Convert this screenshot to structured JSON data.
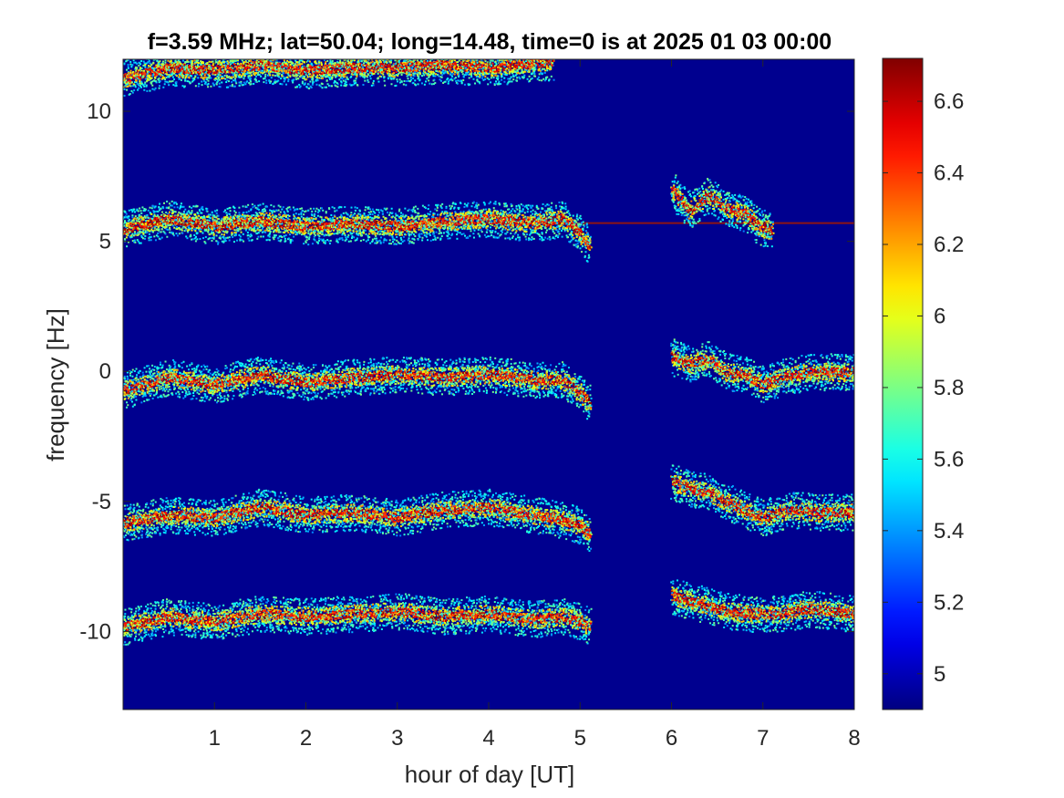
{
  "chart_data": {
    "type": "heatmap",
    "title": "f=3.59 MHz;  lat=50.04; long=14.48, time=0 is at 2025 01 03 00:00",
    "xlabel": "hour of day [UT]",
    "ylabel": "frequency [Hz]",
    "xlim": [
      0,
      8
    ],
    "ylim": [
      -13,
      12
    ],
    "xticks": [
      1,
      2,
      3,
      4,
      5,
      6,
      7,
      8
    ],
    "xtick_labels": [
      "1",
      "2",
      "3",
      "4",
      "5",
      "6",
      "7",
      "8"
    ],
    "yticks": [
      10,
      5,
      0,
      -5,
      -10
    ],
    "ytick_labels": [
      "10",
      "5",
      "0",
      "-5",
      "-10"
    ],
    "colormap": "jet",
    "background_color": "#00008f",
    "colorbar": {
      "clim": [
        4.9,
        6.72
      ],
      "ticks": [
        5,
        5.2,
        5.4,
        5.6,
        5.8,
        6,
        6.2,
        6.4,
        6.6
      ],
      "tick_labels": [
        "5",
        "5.2",
        "5.4",
        "5.6",
        "5.8",
        "6",
        "6.2",
        "6.4",
        "6.6"
      ]
    },
    "series": [
      {
        "segments": [
          {
            "t": [
              0.0,
              0.5,
              1.0,
              1.5,
              2.0,
              2.5,
              3.0,
              3.5,
              4.0,
              4.5,
              4.8,
              5.0,
              5.1
            ],
            "f": [
              5.5,
              5.9,
              5.6,
              5.8,
              5.6,
              5.7,
              5.6,
              5.8,
              5.9,
              5.7,
              5.9,
              5.3,
              4.8
            ]
          },
          {
            "t": [
              6.0,
              6.2,
              6.4,
              6.6,
              6.8,
              6.95,
              7.1
            ],
            "f": [
              7.0,
              6.2,
              6.8,
              6.3,
              6.1,
              5.6,
              5.4
            ]
          }
        ]
      },
      {
        "segments": [
          {
            "t": [
              0.0,
              0.5,
              1.0,
              1.5,
              2.0,
              2.5,
              3.0,
              3.5,
              4.0,
              4.5,
              4.8,
              5.0,
              5.1
            ],
            "f": [
              -0.7,
              -0.2,
              -0.5,
              -0.1,
              -0.4,
              -0.2,
              -0.1,
              -0.2,
              -0.1,
              -0.3,
              -0.3,
              -0.8,
              -1.2
            ]
          },
          {
            "t": [
              6.0,
              6.2,
              6.4,
              6.6,
              6.8,
              7.0,
              7.2,
              7.5,
              8.0
            ],
            "f": [
              0.6,
              0.3,
              0.5,
              0.0,
              -0.1,
              -0.5,
              -0.2,
              0.0,
              0.0
            ]
          }
        ]
      },
      {
        "segments": [
          {
            "t": [
              0.0,
              0.5,
              1.0,
              1.5,
              2.0,
              2.5,
              3.0,
              3.5,
              4.0,
              4.5,
              4.8,
              5.0,
              5.1
            ],
            "f": [
              -5.8,
              -5.5,
              -5.6,
              -5.2,
              -5.5,
              -5.4,
              -5.6,
              -5.3,
              -5.2,
              -5.5,
              -5.7,
              -5.9,
              -6.2
            ]
          },
          {
            "t": [
              6.0,
              6.2,
              6.4,
              6.6,
              6.8,
              7.0,
              7.3,
              7.6,
              8.0
            ],
            "f": [
              -4.2,
              -4.5,
              -4.6,
              -5.0,
              -5.3,
              -5.6,
              -5.3,
              -5.4,
              -5.4
            ]
          }
        ]
      },
      {
        "segments": [
          {
            "t": [
              0.0,
              0.5,
              1.0,
              1.5,
              2.0,
              2.5,
              3.0,
              3.5,
              4.0,
              4.5,
              4.8,
              5.0,
              5.1
            ],
            "f": [
              -9.8,
              -9.4,
              -9.6,
              -9.3,
              -9.4,
              -9.3,
              -9.2,
              -9.4,
              -9.3,
              -9.5,
              -9.4,
              -9.6,
              -9.8
            ]
          },
          {
            "t": [
              6.0,
              6.3,
              6.6,
              6.9,
              7.2,
              7.5,
              8.0
            ],
            "f": [
              -8.6,
              -8.9,
              -9.2,
              -9.3,
              -9.3,
              -9.1,
              -9.3
            ]
          }
        ]
      },
      {
        "segments": [
          {
            "t": [
              0.0,
              0.5,
              1.0,
              1.5,
              2.0,
              2.5,
              3.0,
              3.5,
              4.0,
              4.5,
              4.7
            ],
            "f": [
              11.3,
              11.7,
              11.6,
              11.8,
              11.6,
              11.7,
              11.7,
              11.8,
              11.7,
              11.9,
              11.9
            ]
          }
        ]
      }
    ],
    "carrier_line": {
      "f": 5.7,
      "t": [
        0.0,
        8.0
      ]
    }
  }
}
